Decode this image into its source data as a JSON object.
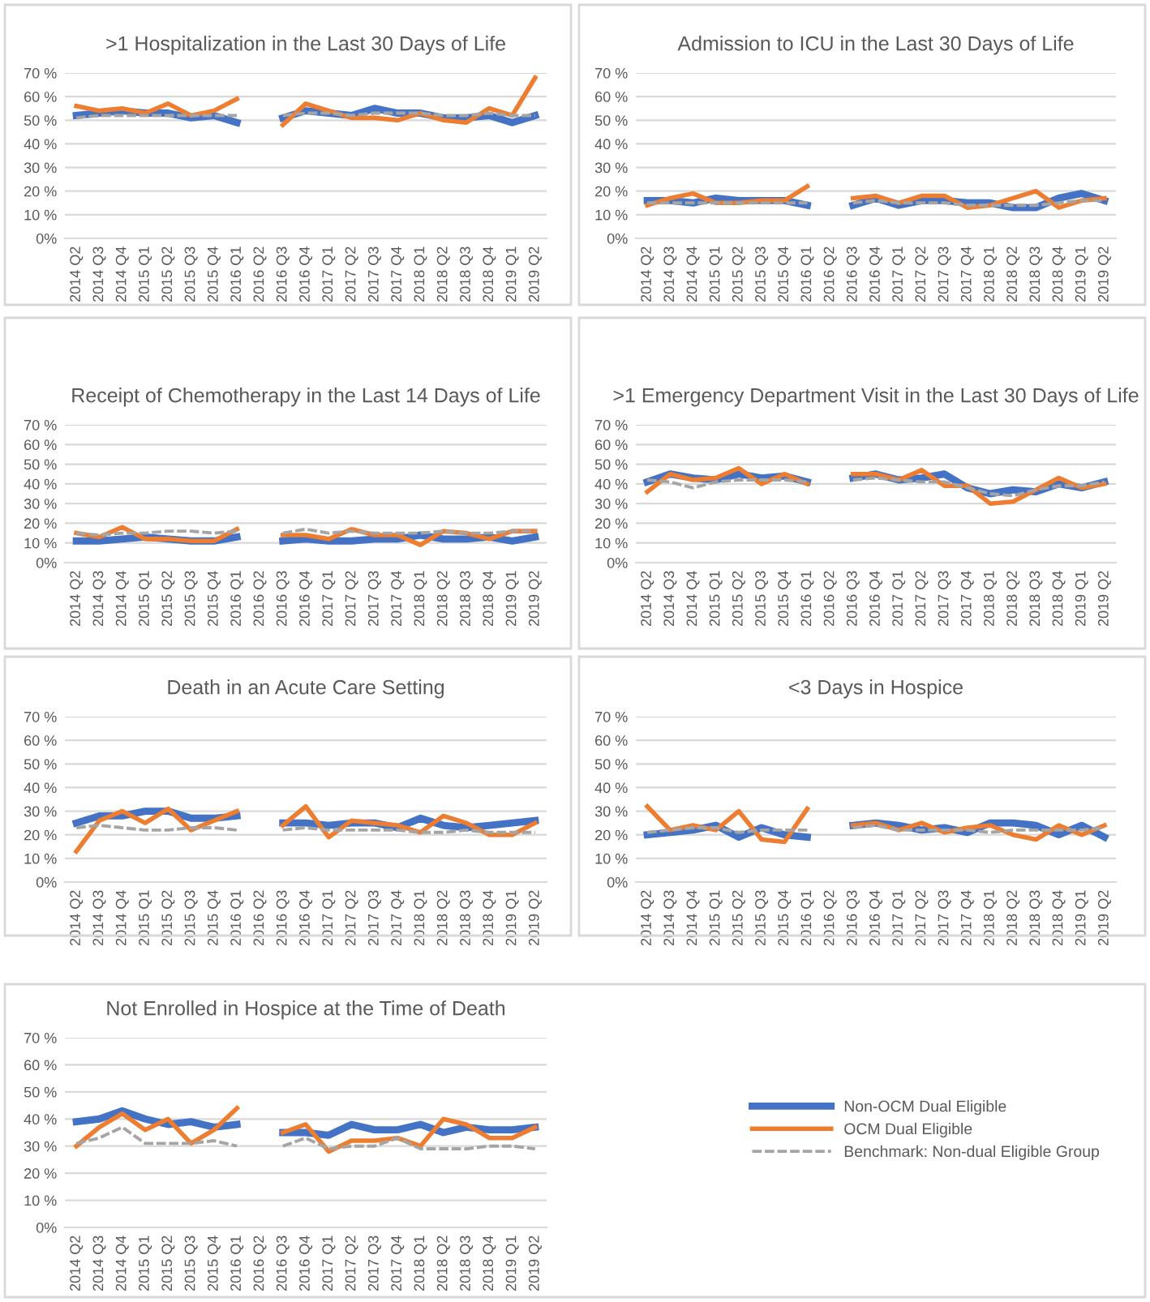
{
  "chart_data": [
    {
      "type": "line",
      "title": ">1 Hospitalization in the Last 30 Days of Life",
      "categories": [
        "2014 Q2",
        "2014 Q3",
        "2014 Q4",
        "2015 Q1",
        "2015 Q2",
        "2015 Q3",
        "2015 Q4",
        "2016 Q1",
        "2016 Q2",
        "2016 Q3",
        "2016 Q4",
        "2017 Q1",
        "2017 Q2",
        "2017 Q3",
        "2017 Q4",
        "2018 Q1",
        "2018 Q2",
        "2018 Q3",
        "2018 Q4",
        "2019 Q1",
        "2019 Q2"
      ],
      "ylim": [
        0,
        70
      ],
      "yticks": [
        {
          "value": 0,
          "label": "0%"
        },
        {
          "value": 10,
          "label": "10 %"
        },
        {
          "value": 20,
          "label": "20 %"
        },
        {
          "value": 30,
          "label": "30 %"
        },
        {
          "value": 40,
          "label": "40 %"
        },
        {
          "value": 50,
          "label": "50 %"
        },
        {
          "value": 60,
          "label": "60 %"
        },
        {
          "value": 70,
          "label": "70 %"
        }
      ],
      "grid": "y",
      "series": [
        {
          "color": "#a5a5a5",
          "line_style": "dashed",
          "values": [
            51,
            52,
            52,
            52,
            52,
            52,
            52,
            52,
            null,
            52,
            53,
            53,
            52,
            53,
            53,
            53,
            52,
            52,
            53,
            52,
            52
          ]
        },
        {
          "color": "#4472c4",
          "line_style": "solid",
          "values": [
            52,
            53,
            54,
            53,
            53,
            51,
            52,
            49,
            null,
            51,
            54,
            53,
            52,
            55,
            53,
            53,
            51,
            51,
            52,
            49,
            52
          ]
        },
        {
          "color": "#ed7d31",
          "line_style": "solid",
          "values": [
            56,
            54,
            55,
            53,
            57,
            52,
            54,
            59,
            null,
            48,
            57,
            54,
            51,
            51,
            50,
            53,
            50,
            49,
            55,
            52,
            68
          ]
        }
      ]
    },
    {
      "type": "line",
      "title": "Admission to ICU in the Last 30 Days of Life",
      "categories": [
        "2014 Q2",
        "2014 Q3",
        "2014 Q4",
        "2015 Q1",
        "2015 Q2",
        "2015 Q3",
        "2015 Q4",
        "2016 Q1",
        "2016 Q2",
        "2016 Q3",
        "2016 Q4",
        "2017 Q1",
        "2017 Q2",
        "2017 Q3",
        "2017 Q4",
        "2018 Q1",
        "2018 Q2",
        "2018 Q3",
        "2018 Q4",
        "2019 Q1",
        "2019 Q2"
      ],
      "ylim": [
        0,
        70
      ],
      "yticks": [
        {
          "value": 0,
          "label": "0%"
        },
        {
          "value": 10,
          "label": "10 %"
        },
        {
          "value": 20,
          "label": "20 %"
        },
        {
          "value": 30,
          "label": "30 %"
        },
        {
          "value": 40,
          "label": "40 %"
        },
        {
          "value": 50,
          "label": "50 %"
        },
        {
          "value": 60,
          "label": "60 %"
        },
        {
          "value": 70,
          "label": "70 %"
        }
      ],
      "grid": "y",
      "series": [
        {
          "color": "#a5a5a5",
          "line_style": "dashed",
          "values": [
            15,
            15,
            15,
            15,
            15,
            15,
            15,
            15,
            null,
            15,
            16,
            15,
            15,
            15,
            14,
            14,
            14,
            14,
            15,
            16,
            16
          ]
        },
        {
          "color": "#4472c4",
          "line_style": "solid",
          "values": [
            16,
            16,
            15,
            17,
            16,
            16,
            16,
            14,
            null,
            14,
            17,
            14,
            16,
            16,
            15,
            15,
            13,
            13,
            17,
            19,
            16
          ]
        },
        {
          "color": "#ed7d31",
          "line_style": "solid",
          "values": [
            14,
            17,
            19,
            15,
            15,
            16,
            16,
            22,
            null,
            17,
            18,
            15,
            18,
            18,
            13,
            14,
            17,
            20,
            13,
            16,
            17
          ]
        }
      ]
    },
    {
      "type": "line",
      "title": "Receipt of Chemotherapy in the Last 14 Days of Life",
      "categories": [
        "2014 Q2",
        "2014 Q3",
        "2014 Q4",
        "2015 Q1",
        "2015 Q2",
        "2015 Q3",
        "2015 Q4",
        "2016 Q1",
        "2016 Q2",
        "2016 Q3",
        "2016 Q4",
        "2017 Q1",
        "2017 Q2",
        "2017 Q3",
        "2017 Q4",
        "2018 Q1",
        "2018 Q2",
        "2018 Q3",
        "2018 Q4",
        "2019 Q1",
        "2019 Q2"
      ],
      "ylim": [
        0,
        70
      ],
      "yticks": [
        {
          "value": 0,
          "label": "0%"
        },
        {
          "value": 10,
          "label": "10 %"
        },
        {
          "value": 20,
          "label": "20 %"
        },
        {
          "value": 30,
          "label": "30 %"
        },
        {
          "value": 40,
          "label": "40 %"
        },
        {
          "value": 50,
          "label": "50 %"
        },
        {
          "value": 60,
          "label": "60 %"
        },
        {
          "value": 70,
          "label": "70 %"
        }
      ],
      "grid": "y",
      "series": [
        {
          "color": "#a5a5a5",
          "line_style": "dashed",
          "values": [
            15,
            14,
            15,
            15,
            16,
            16,
            15,
            16,
            null,
            15,
            17,
            15,
            16,
            15,
            15,
            15,
            16,
            15,
            15,
            16,
            16
          ]
        },
        {
          "color": "#4472c4",
          "line_style": "solid",
          "values": [
            11,
            11,
            12,
            13,
            12,
            11,
            11,
            13,
            null,
            11,
            12,
            11,
            11,
            12,
            12,
            14,
            12,
            12,
            13,
            11,
            13
          ]
        },
        {
          "color": "#ed7d31",
          "line_style": "solid",
          "values": [
            15,
            13,
            18,
            12,
            12,
            11,
            11,
            17,
            null,
            14,
            14,
            12,
            17,
            14,
            14,
            9,
            16,
            15,
            12,
            16,
            16
          ]
        }
      ]
    },
    {
      "type": "line",
      "title": ">1 Emergency Department Visit in the Last 30 Days of Life",
      "categories": [
        "2014 Q2",
        "2014 Q3",
        "2014 Q4",
        "2015 Q1",
        "2015 Q2",
        "2015 Q3",
        "2015 Q4",
        "2016 Q1",
        "2016 Q2",
        "2016 Q3",
        "2016 Q4",
        "2017 Q1",
        "2017 Q2",
        "2017 Q3",
        "2017 Q4",
        "2018 Q1",
        "2018 Q2",
        "2018 Q3",
        "2018 Q4",
        "2019 Q1",
        "2019 Q2"
      ],
      "ylim": [
        0,
        70
      ],
      "yticks": [
        {
          "value": 0,
          "label": "0%"
        },
        {
          "value": 10,
          "label": "10 %"
        },
        {
          "value": 20,
          "label": "20 %"
        },
        {
          "value": 30,
          "label": "30 %"
        },
        {
          "value": 40,
          "label": "40 %"
        },
        {
          "value": 50,
          "label": "50 %"
        },
        {
          "value": 60,
          "label": "60 %"
        },
        {
          "value": 70,
          "label": "70 %"
        }
      ],
      "grid": "y",
      "series": [
        {
          "color": "#a5a5a5",
          "line_style": "dashed",
          "values": [
            42,
            41,
            38,
            41,
            42,
            42,
            42,
            41,
            null,
            42,
            43,
            42,
            41,
            41,
            38,
            35,
            34,
            37,
            39,
            39,
            41
          ]
        },
        {
          "color": "#4472c4",
          "line_style": "solid",
          "values": [
            41,
            45,
            43,
            42,
            45,
            43,
            44,
            41,
            null,
            43,
            45,
            42,
            43,
            45,
            38,
            35,
            37,
            36,
            40,
            38,
            41
          ]
        },
        {
          "color": "#ed7d31",
          "line_style": "solid",
          "values": [
            36,
            45,
            42,
            43,
            48,
            40,
            45,
            40,
            null,
            45,
            45,
            42,
            47,
            39,
            39,
            30,
            31,
            37,
            43,
            38,
            40
          ]
        }
      ]
    },
    {
      "type": "line",
      "title": "Death in an Acute Care Setting",
      "categories": [
        "2014 Q2",
        "2014 Q3",
        "2014 Q4",
        "2015 Q1",
        "2015 Q2",
        "2015 Q3",
        "2015 Q4",
        "2016 Q1",
        "2016 Q2",
        "2016 Q3",
        "2016 Q4",
        "2017 Q1",
        "2017 Q2",
        "2017 Q3",
        "2017 Q4",
        "2018 Q1",
        "2018 Q2",
        "2018 Q3",
        "2018 Q4",
        "2019 Q1",
        "2019 Q2"
      ],
      "ylim": [
        0,
        70
      ],
      "yticks": [
        {
          "value": 0,
          "label": "0%"
        },
        {
          "value": 10,
          "label": "10 %"
        },
        {
          "value": 20,
          "label": "20 %"
        },
        {
          "value": 30,
          "label": "30 %"
        },
        {
          "value": 40,
          "label": "40 %"
        },
        {
          "value": 50,
          "label": "50 %"
        },
        {
          "value": 60,
          "label": "60 %"
        },
        {
          "value": 70,
          "label": "70 %"
        }
      ],
      "grid": "y",
      "series": [
        {
          "color": "#a5a5a5",
          "line_style": "dashed",
          "values": [
            23,
            24,
            23,
            22,
            22,
            23,
            23,
            22,
            null,
            22,
            23,
            22,
            22,
            22,
            22,
            21,
            21,
            22,
            21,
            21,
            21
          ]
        },
        {
          "color": "#4472c4",
          "line_style": "solid",
          "values": [
            25,
            28,
            28,
            30,
            30,
            27,
            27,
            28,
            null,
            25,
            25,
            24,
            25,
            25,
            23,
            27,
            24,
            23,
            24,
            25,
            26
          ]
        },
        {
          "color": "#ed7d31",
          "line_style": "solid",
          "values": [
            13,
            26,
            30,
            25,
            31,
            22,
            26,
            30,
            null,
            24,
            32,
            19,
            26,
            25,
            24,
            21,
            28,
            25,
            20,
            20,
            25
          ]
        }
      ]
    },
    {
      "type": "line",
      "title": "<3 Days in Hospice",
      "categories": [
        "2014 Q2",
        "2014 Q3",
        "2014 Q4",
        "2015 Q1",
        "2015 Q2",
        "2015 Q3",
        "2015 Q4",
        "2016 Q1",
        "2016 Q2",
        "2016 Q3",
        "2016 Q4",
        "2017 Q1",
        "2017 Q2",
        "2017 Q3",
        "2017 Q4",
        "2018 Q1",
        "2018 Q2",
        "2018 Q3",
        "2018 Q4",
        "2019 Q1",
        "2019 Q2"
      ],
      "ylim": [
        0,
        70
      ],
      "yticks": [
        {
          "value": 0,
          "label": "0%"
        },
        {
          "value": 10,
          "label": "10 %"
        },
        {
          "value": 20,
          "label": "20 %"
        },
        {
          "value": 30,
          "label": "30 %"
        },
        {
          "value": 40,
          "label": "40 %"
        },
        {
          "value": 50,
          "label": "50 %"
        },
        {
          "value": 60,
          "label": "60 %"
        },
        {
          "value": 70,
          "label": "70 %"
        }
      ],
      "grid": "y",
      "series": [
        {
          "color": "#a5a5a5",
          "line_style": "dashed",
          "values": [
            21,
            22,
            23,
            23,
            21,
            22,
            22,
            22,
            null,
            23,
            24,
            22,
            22,
            22,
            22,
            21,
            22,
            22,
            22,
            22,
            23
          ]
        },
        {
          "color": "#4472c4",
          "line_style": "solid",
          "values": [
            20,
            21,
            22,
            24,
            19,
            23,
            20,
            19,
            null,
            24,
            25,
            24,
            22,
            23,
            21,
            25,
            25,
            24,
            20,
            24,
            19
          ]
        },
        {
          "color": "#ed7d31",
          "line_style": "solid",
          "values": [
            32,
            22,
            24,
            22,
            30,
            18,
            17,
            31,
            null,
            24,
            25,
            22,
            25,
            21,
            23,
            24,
            20,
            18,
            24,
            20,
            24
          ]
        }
      ]
    },
    {
      "type": "line",
      "title": "Not Enrolled in Hospice at the Time of Death",
      "categories": [
        "2014 Q2",
        "2014 Q3",
        "2014 Q4",
        "2015 Q1",
        "2015 Q2",
        "2015 Q3",
        "2015 Q4",
        "2016 Q1",
        "2016 Q2",
        "2016 Q3",
        "2016 Q4",
        "2017 Q1",
        "2017 Q2",
        "2017 Q3",
        "2017 Q4",
        "2018 Q1",
        "2018 Q2",
        "2018 Q3",
        "2018 Q4",
        "2019 Q1",
        "2019 Q2"
      ],
      "ylim": [
        0,
        70
      ],
      "yticks": [
        {
          "value": 0,
          "label": "0%"
        },
        {
          "value": 10,
          "label": "10 %"
        },
        {
          "value": 20,
          "label": "20 %"
        },
        {
          "value": 30,
          "label": "30 %"
        },
        {
          "value": 40,
          "label": "40 %"
        },
        {
          "value": 50,
          "label": "50 %"
        },
        {
          "value": 60,
          "label": "60 %"
        },
        {
          "value": 70,
          "label": "70 %"
        }
      ],
      "grid": "y",
      "legend": "right",
      "series": [
        {
          "name": "Benchmark: Non-dual Eligible Group",
          "color": "#a5a5a5",
          "line_style": "dashed",
          "values": [
            31,
            33,
            37,
            31,
            31,
            31,
            32,
            30,
            null,
            30,
            33,
            29,
            30,
            30,
            33,
            29,
            29,
            29,
            30,
            30,
            29
          ]
        },
        {
          "name": "Non-OCM Dual Eligible",
          "color": "#4472c4",
          "line_style": "solid",
          "values": [
            39,
            40,
            43,
            40,
            38,
            39,
            37,
            38,
            null,
            35,
            35,
            34,
            38,
            36,
            36,
            38,
            35,
            37,
            36,
            36,
            37
          ]
        },
        {
          "name": "OCM Dual Eligible",
          "color": "#ed7d31",
          "line_style": "solid",
          "values": [
            30,
            37,
            42,
            36,
            40,
            31,
            36,
            44,
            null,
            35,
            38,
            28,
            32,
            32,
            33,
            30,
            40,
            38,
            33,
            33,
            37
          ]
        }
      ]
    }
  ]
}
